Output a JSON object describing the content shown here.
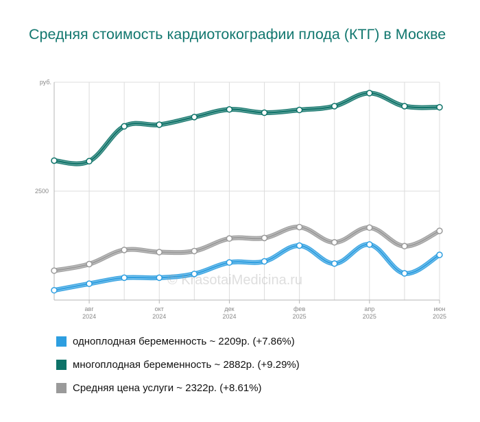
{
  "title": "Средняя стоимость кардиотокографии плода (КТГ) в Москве",
  "watermark": "© KrasotaiMedicina.ru",
  "chart_data": {
    "type": "line",
    "title": "Средняя стоимость кардиотокографии плода (КТГ) в Москве",
    "ylabel": "руб.",
    "y_tick_labels": [
      {
        "value": 2500,
        "label": "2500"
      }
    ],
    "ylim": [
      1500,
      3500
    ],
    "x_tick_labels": [
      {
        "index": 1,
        "month": "авг",
        "year": "2024"
      },
      {
        "index": 3,
        "month": "окт",
        "year": "2024"
      },
      {
        "index": 5,
        "month": "дек",
        "year": "2024"
      },
      {
        "index": 7,
        "month": "фев",
        "year": "2025"
      },
      {
        "index": 9,
        "month": "апр",
        "year": "2025"
      },
      {
        "index": 11,
        "month": "июн",
        "year": "2025"
      }
    ],
    "x": [
      "2024-07",
      "2024-08",
      "2024-09",
      "2024-10",
      "2024-11",
      "2024-12",
      "2025-01",
      "2025-02",
      "2025-03",
      "2025-04",
      "2025-05",
      "2025-06"
    ],
    "grid": true,
    "legend_position": "bottom",
    "series": [
      {
        "name": "однoплодная беременность ~ 2209р. (+7.86%)",
        "color": "#2d9ee0",
        "values": [
          1590,
          1650,
          1705,
          1705,
          1740,
          1845,
          1855,
          2000,
          1835,
          2010,
          1745,
          1915
        ]
      },
      {
        "name": "многоплодная беременность ~ 2882р. (+9.29%)",
        "color": "#0d7268",
        "values": [
          2780,
          2775,
          3095,
          3110,
          3180,
          3250,
          3220,
          3245,
          3280,
          3400,
          3280,
          3270
        ]
      },
      {
        "name": "Средняя цена услуги ~ 2322р. (+8.61%)",
        "color": "#9a9a9a",
        "values": [
          1770,
          1830,
          1960,
          1940,
          1950,
          2065,
          2070,
          2170,
          2030,
          2165,
          1995,
          2135
        ]
      }
    ]
  }
}
